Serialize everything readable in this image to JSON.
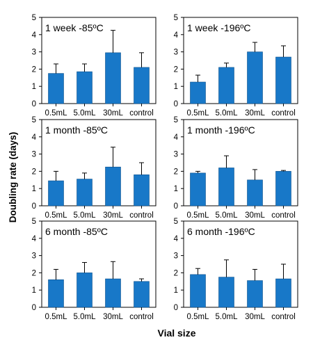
{
  "ylabel": "Doubling rate (days)",
  "xlabel": "Vial size",
  "colors": {
    "bar": "#1878c8",
    "bar_edge": "#0b4f8a",
    "axis": "#000000"
  },
  "chart_data": [
    {
      "type": "bar",
      "title": "1 week -85ºC",
      "categories": [
        "0.5mL",
        "5.0mL",
        "30mL",
        "control"
      ],
      "values": [
        1.75,
        1.85,
        2.95,
        2.1
      ],
      "errors": [
        0.55,
        0.45,
        1.3,
        0.85
      ],
      "ylim": [
        0,
        5
      ],
      "yticks": [
        "0",
        "1",
        "2",
        "3",
        "4",
        "5"
      ]
    },
    {
      "type": "bar",
      "title": "1 week -196ºC",
      "categories": [
        "0.5mL",
        "5.0mL",
        "30mL",
        "control"
      ],
      "values": [
        1.25,
        2.1,
        3.0,
        2.7
      ],
      "errors": [
        0.4,
        0.25,
        0.55,
        0.65
      ],
      "ylim": [
        0,
        5
      ],
      "yticks": [
        "0",
        "1",
        "2",
        "3",
        "4",
        "5"
      ]
    },
    {
      "type": "bar",
      "title": "1 month -85ºC",
      "categories": [
        "0.5mL",
        "5.0mL",
        "30mL",
        "control"
      ],
      "values": [
        1.45,
        1.55,
        2.25,
        1.8
      ],
      "errors": [
        0.55,
        0.35,
        1.15,
        0.7
      ],
      "ylim": [
        0,
        5
      ],
      "yticks": [
        "0",
        "1",
        "2",
        "3",
        "4",
        "5"
      ]
    },
    {
      "type": "bar",
      "title": "1 month -196ºC",
      "categories": [
        "0.5mL",
        "5.0mL",
        "30mL",
        "control"
      ],
      "values": [
        1.9,
        2.2,
        1.5,
        2.0
      ],
      "errors": [
        0.1,
        0.7,
        0.6,
        0.05
      ],
      "ylim": [
        0,
        5
      ],
      "yticks": [
        "0",
        "1",
        "2",
        "3",
        "4",
        "5"
      ]
    },
    {
      "type": "bar",
      "title": "6 month -85ºC",
      "categories": [
        "0.5mL",
        "5.0mL",
        "30mL",
        "control"
      ],
      "values": [
        1.6,
        2.0,
        1.65,
        1.5
      ],
      "errors": [
        0.6,
        0.6,
        1.0,
        0.15
      ],
      "ylim": [
        0,
        5
      ],
      "yticks": [
        "0",
        "1",
        "2",
        "3",
        "4",
        "5"
      ]
    },
    {
      "type": "bar",
      "title": "6 month -196ºC",
      "categories": [
        "0.5mL",
        "5.0mL",
        "30mL",
        "control"
      ],
      "values": [
        1.9,
        1.75,
        1.55,
        1.65
      ],
      "errors": [
        0.35,
        1.0,
        0.65,
        0.85
      ],
      "ylim": [
        0,
        5
      ],
      "yticks": [
        "0",
        "1",
        "2",
        "3",
        "4",
        "5"
      ]
    }
  ]
}
